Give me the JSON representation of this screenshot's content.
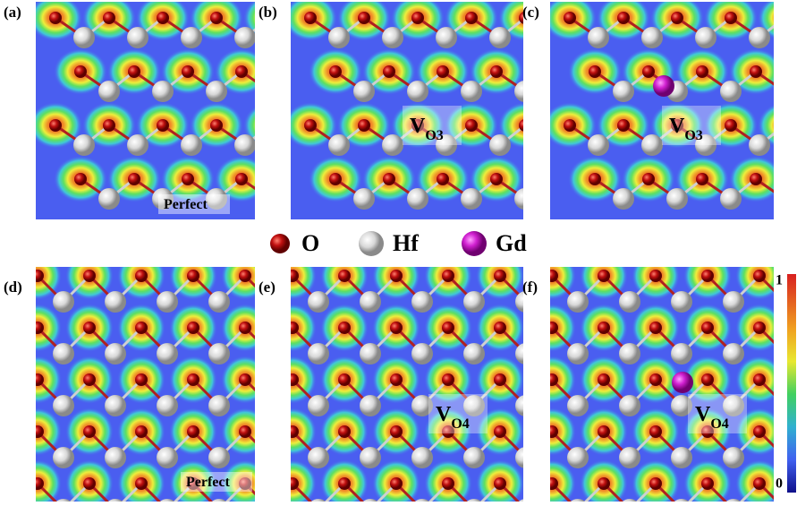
{
  "panels": [
    {
      "label": "(a)",
      "annotation": "Perfect"
    },
    {
      "label": "(b)",
      "annotation": {
        "main": "V",
        "sub": "O3"
      }
    },
    {
      "label": "(c)",
      "annotation": {
        "main": "V",
        "sub": "O3"
      }
    },
    {
      "label": "(d)",
      "annotation": "Perfect"
    },
    {
      "label": "(e)",
      "annotation": {
        "main": "V",
        "sub": "O4"
      }
    },
    {
      "label": "(f)",
      "annotation": {
        "main": "V",
        "sub": "O4"
      }
    }
  ],
  "legend": [
    {
      "label": "O"
    },
    {
      "label": "Hf"
    },
    {
      "label": "Gd"
    }
  ],
  "colorbar": {
    "max": 1,
    "min": 0
  }
}
